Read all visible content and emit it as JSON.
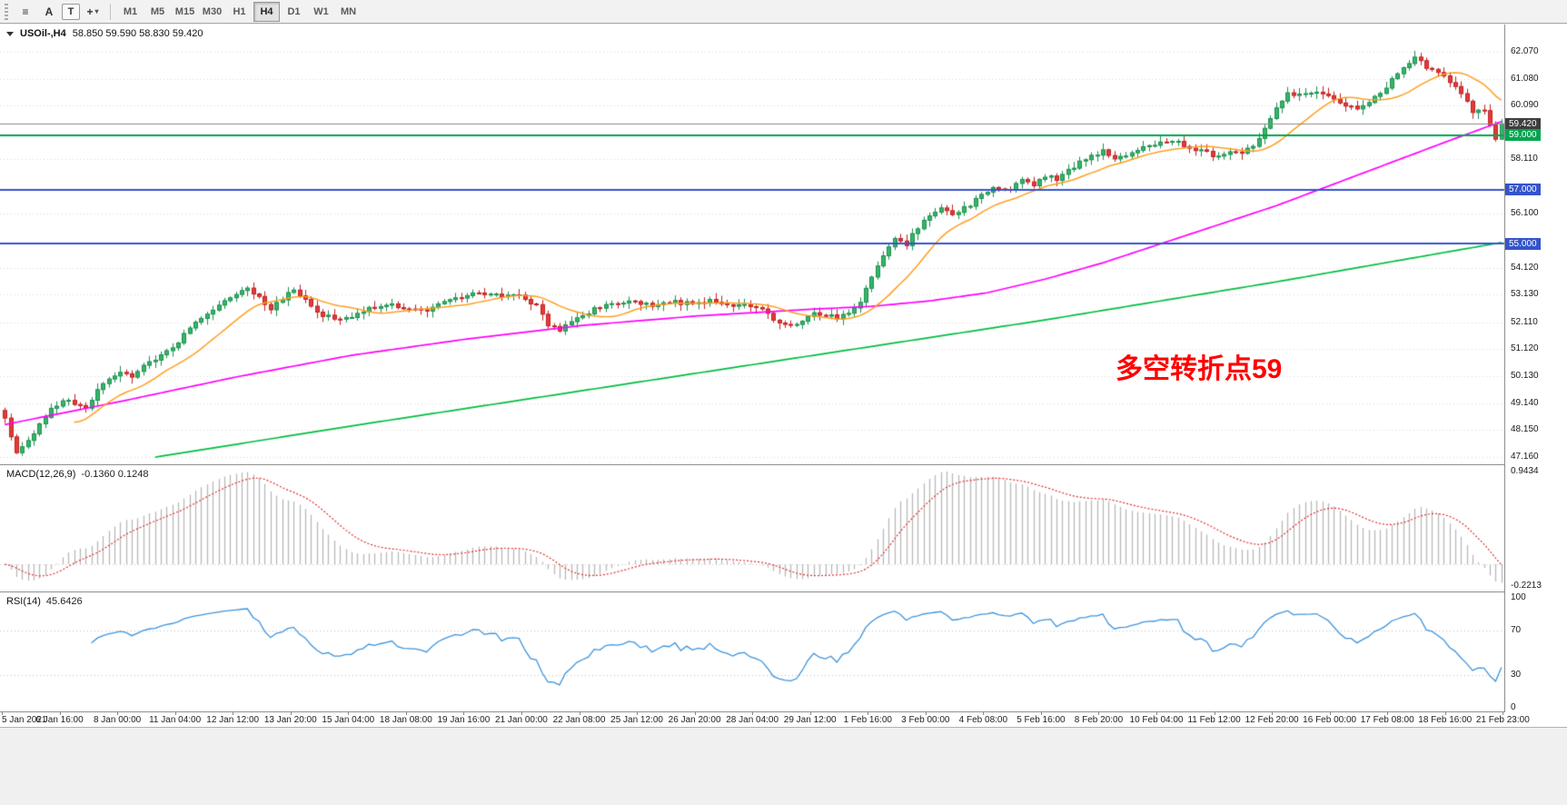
{
  "toolbar": {
    "icons": [
      {
        "name": "chart-grid-icon",
        "glyph": "≡"
      },
      {
        "name": "text-label-a-button",
        "glyph": "A"
      },
      {
        "name": "text-tool-t-button",
        "glyph": "T",
        "boxed": true
      },
      {
        "name": "crosshair-dropdown-button",
        "glyph": "+",
        "caret": "▾"
      }
    ],
    "timeframes": [
      "M1",
      "M5",
      "M15",
      "M30",
      "H1",
      "H4",
      "D1",
      "W1",
      "MN"
    ],
    "active_timeframe": "H4"
  },
  "chart": {
    "title": "USOil-,H4",
    "ohlc_text": "58.850 59.590 58.830 59.420",
    "annotation_text": "多空转折点59",
    "annotation_color": "#ff0000",
    "price_axis": {
      "max": 63.07,
      "min": 46.89,
      "grid_labels": [
        "62.070",
        "61.080",
        "60.090",
        "58.110",
        "56.100",
        "54.120",
        "53.130",
        "52.110",
        "51.120",
        "50.130",
        "49.140",
        "48.150",
        "47.160"
      ],
      "bid": {
        "value": 59.42,
        "label": "59.420",
        "bg": "#3e3e3e"
      },
      "levels": [
        {
          "value": 59.0,
          "label": "59.000",
          "color": "#00a550"
        },
        {
          "value": 57.0,
          "label": "57.000",
          "color": "#3554cb"
        },
        {
          "value": 55.0,
          "label": "55.000",
          "color": "#3554cb"
        }
      ]
    }
  },
  "macd": {
    "title": "MACD(12,26,9)",
    "values": "-0.1360 0.1248",
    "axis_top": "0.9434",
    "axis_bottom": "-0.2213",
    "vmax": 0.9434,
    "vmin": -0.2213
  },
  "rsi": {
    "title": "RSI(14)",
    "value": "45.6426",
    "axis": [
      {
        "v": 100,
        "label": "100"
      },
      {
        "v": 70,
        "label": "70"
      },
      {
        "v": 30,
        "label": "30"
      },
      {
        "v": 0,
        "label": "0"
      }
    ],
    "levels": [
      70,
      30
    ]
  },
  "time_axis": [
    "5 Jan 2021",
    "6 Jan 16:00",
    "8 Jan 00:00",
    "11 Jan 04:00",
    "12 Jan 12:00",
    "13 Jan 20:00",
    "15 Jan 04:00",
    "18 Jan 08:00",
    "19 Jan 16:00",
    "21 Jan 00:00",
    "22 Jan 08:00",
    "25 Jan 12:00",
    "26 Jan 20:00",
    "28 Jan 04:00",
    "29 Jan 12:00",
    "1 Feb 16:00",
    "3 Feb 00:00",
    "4 Feb 08:00",
    "5 Feb 16:00",
    "8 Feb 20:00",
    "10 Feb 04:00",
    "11 Feb 12:00",
    "12 Feb 20:00",
    "16 Feb 00:00",
    "17 Feb 08:00",
    "18 Feb 16:00",
    "21 Feb 23:00"
  ],
  "chart_data": {
    "type": "candlestick",
    "symbol": "USOil-",
    "timeframe": "H4",
    "ohlc_display": {
      "open": 58.85,
      "high": 59.59,
      "low": 58.83,
      "close": 59.42
    },
    "last_candle": {
      "open": 58.85,
      "high": 59.59,
      "low": 58.83,
      "close": 59.42
    },
    "candles_n": 260,
    "close_path": [
      [
        0,
        48.6
      ],
      [
        2,
        47.35
      ],
      [
        4,
        47.8
      ],
      [
        6,
        48.3
      ],
      [
        8,
        48.9
      ],
      [
        10,
        49.3
      ],
      [
        12,
        49.1
      ],
      [
        14,
        49.0
      ],
      [
        16,
        49.6
      ],
      [
        18,
        50.0
      ],
      [
        20,
        50.3
      ],
      [
        22,
        50.1
      ],
      [
        24,
        50.5
      ],
      [
        26,
        50.8
      ],
      [
        28,
        51.0
      ],
      [
        30,
        51.4
      ],
      [
        32,
        51.9
      ],
      [
        34,
        52.3
      ],
      [
        36,
        52.6
      ],
      [
        38,
        52.9
      ],
      [
        40,
        53.2
      ],
      [
        42,
        53.4
      ],
      [
        44,
        53.0
      ],
      [
        46,
        52.6
      ],
      [
        48,
        53.0
      ],
      [
        50,
        53.35
      ],
      [
        52,
        52.9
      ],
      [
        54,
        52.5
      ],
      [
        56,
        52.3
      ],
      [
        58,
        52.15
      ],
      [
        60,
        52.3
      ],
      [
        62,
        52.5
      ],
      [
        64,
        52.7
      ],
      [
        66,
        52.8
      ],
      [
        68,
        52.7
      ],
      [
        70,
        52.6
      ],
      [
        72,
        52.5
      ],
      [
        74,
        52.7
      ],
      [
        76,
        52.9
      ],
      [
        78,
        53.0
      ],
      [
        80,
        53.1
      ],
      [
        82,
        53.2
      ],
      [
        84,
        53.15
      ],
      [
        86,
        53.1
      ],
      [
        88,
        53.1
      ],
      [
        90,
        53.0
      ],
      [
        92,
        52.7
      ],
      [
        94,
        52.0
      ],
      [
        96,
        51.85
      ],
      [
        98,
        52.1
      ],
      [
        100,
        52.4
      ],
      [
        102,
        52.6
      ],
      [
        104,
        52.7
      ],
      [
        106,
        52.8
      ],
      [
        108,
        52.9
      ],
      [
        110,
        52.8
      ],
      [
        112,
        52.75
      ],
      [
        114,
        52.8
      ],
      [
        116,
        52.85
      ],
      [
        118,
        52.8
      ],
      [
        120,
        52.85
      ],
      [
        122,
        52.9
      ],
      [
        124,
        52.8
      ],
      [
        126,
        52.75
      ],
      [
        128,
        52.7
      ],
      [
        130,
        52.7
      ],
      [
        132,
        52.4
      ],
      [
        134,
        52.1
      ],
      [
        136,
        51.95
      ],
      [
        138,
        52.2
      ],
      [
        140,
        52.5
      ],
      [
        142,
        52.4
      ],
      [
        144,
        52.3
      ],
      [
        146,
        52.45
      ],
      [
        148,
        52.8
      ],
      [
        150,
        53.8
      ],
      [
        152,
        54.6
      ],
      [
        154,
        55.2
      ],
      [
        156,
        55.0
      ],
      [
        158,
        55.6
      ],
      [
        160,
        56.1
      ],
      [
        162,
        56.3
      ],
      [
        164,
        56.0
      ],
      [
        166,
        56.3
      ],
      [
        168,
        56.6
      ],
      [
        170,
        56.9
      ],
      [
        172,
        57.1
      ],
      [
        174,
        57.0
      ],
      [
        176,
        57.3
      ],
      [
        178,
        57.2
      ],
      [
        180,
        57.5
      ],
      [
        182,
        57.4
      ],
      [
        184,
        57.7
      ],
      [
        186,
        58.0
      ],
      [
        188,
        58.2
      ],
      [
        190,
        58.4
      ],
      [
        192,
        58.2
      ],
      [
        194,
        58.3
      ],
      [
        196,
        58.5
      ],
      [
        198,
        58.6
      ],
      [
        200,
        58.7
      ],
      [
        202,
        58.8
      ],
      [
        204,
        58.6
      ],
      [
        206,
        58.5
      ],
      [
        208,
        58.35
      ],
      [
        210,
        58.2
      ],
      [
        212,
        58.4
      ],
      [
        214,
        58.3
      ],
      [
        216,
        58.6
      ],
      [
        218,
        59.3
      ],
      [
        220,
        60.0
      ],
      [
        222,
        60.5
      ],
      [
        224,
        60.45
      ],
      [
        226,
        60.6
      ],
      [
        228,
        60.45
      ],
      [
        230,
        60.3
      ],
      [
        232,
        60.1
      ],
      [
        234,
        59.9
      ],
      [
        236,
        60.2
      ],
      [
        238,
        60.6
      ],
      [
        240,
        61.0
      ],
      [
        242,
        61.5
      ],
      [
        244,
        61.9
      ],
      [
        246,
        61.5
      ],
      [
        248,
        61.25
      ],
      [
        250,
        61.0
      ],
      [
        252,
        60.6
      ],
      [
        254,
        59.8
      ],
      [
        256,
        59.9
      ],
      [
        257,
        59.3
      ],
      [
        258,
        58.85
      ],
      [
        259,
        59.42
      ]
    ],
    "ma_fast_period": 13,
    "ma_mid_path": [
      [
        0,
        48.35
      ],
      [
        20,
        49.2
      ],
      [
        40,
        50.1
      ],
      [
        60,
        50.9
      ],
      [
        80,
        51.5
      ],
      [
        100,
        52.0
      ],
      [
        120,
        52.35
      ],
      [
        140,
        52.6
      ],
      [
        150,
        52.7
      ],
      [
        160,
        52.9
      ],
      [
        170,
        53.2
      ],
      [
        180,
        53.7
      ],
      [
        190,
        54.3
      ],
      [
        200,
        55.0
      ],
      [
        210,
        55.7
      ],
      [
        220,
        56.4
      ],
      [
        230,
        57.2
      ],
      [
        240,
        58.0
      ],
      [
        250,
        58.8
      ],
      [
        259,
        59.5
      ]
    ],
    "ma_slow_path": [
      [
        26,
        47.15
      ],
      [
        60,
        48.3
      ],
      [
        100,
        49.6
      ],
      [
        140,
        50.9
      ],
      [
        180,
        52.2
      ],
      [
        220,
        53.6
      ],
      [
        259,
        55.05
      ]
    ],
    "macd_params": [
      12,
      26,
      9
    ],
    "rsi_period": 14,
    "colors": {
      "up": "#35b568",
      "up_border": "#1d9150",
      "down": "#e13b3b",
      "down_border": "#c32222",
      "ma_fast": "#ff9f1f",
      "ma_mid": "#ff00ff",
      "ma_slow": "#00bf40",
      "macd_hist": "#b9b9b9",
      "macd_signal": "#e03030",
      "rsi": "#3f95dd",
      "bid_line": "#8a8a8a",
      "grid": "#d9d9d9"
    }
  }
}
